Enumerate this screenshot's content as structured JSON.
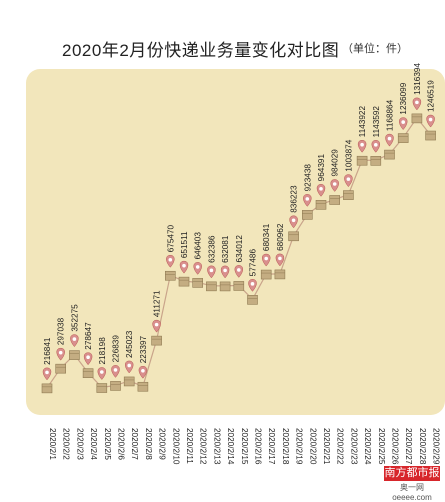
{
  "chart_data": {
    "type": "line",
    "title": "2020年2月份快递业务量变化对比图",
    "unit": "（单位：件）",
    "categories": [
      "2020/2/1",
      "2020/2/2",
      "2020/2/3",
      "2020/2/4",
      "2020/2/5",
      "2020/2/6",
      "2020/2/7",
      "2020/2/8",
      "2020/2/9",
      "2020/2/10",
      "2020/2/11",
      "2020/2/12",
      "2020/2/13",
      "2020/2/14",
      "2020/2/15",
      "2020/2/16",
      "2020/2/17",
      "2020/2/18",
      "2020/2/19",
      "2020/2/20",
      "2020/2/21",
      "2020/2/22",
      "2020/2/23",
      "2020/2/24",
      "2020/2/25",
      "2020/2/26",
      "2020/2/27",
      "2020/2/28",
      "2020/2/29"
    ],
    "series": [
      {
        "values": [
          216841,
          297038,
          352275,
          278647,
          218198,
          226839,
          245023,
          223397,
          411271,
          675470,
          651511,
          646403,
          632386,
          632081,
          634012,
          577486,
          680341,
          680962,
          836223,
          923438,
          964391,
          984029,
          1003874,
          1143922,
          1143592,
          1168864,
          1236099,
          1316394,
          1246519
        ]
      }
    ],
    "colors": {
      "panel": "#f2e6bb",
      "line": "#c9a48a",
      "marker": "#d98f8d",
      "box": "#c4ad82"
    }
  },
  "watermark": {
    "brand": "南方都市报",
    "site": "奥一网 oeeee.com"
  }
}
